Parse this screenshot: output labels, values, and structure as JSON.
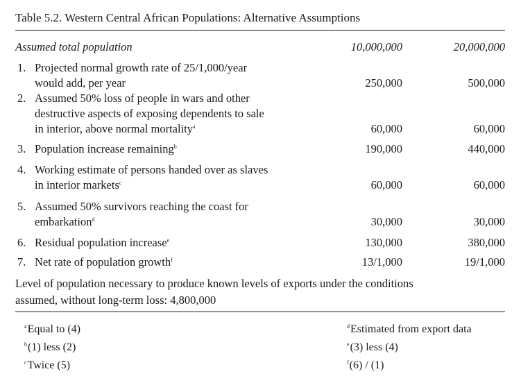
{
  "table": {
    "caption": "Table 5.2. Western Central African Populations: Alternative Assumptions",
    "header": {
      "label": "Assumed total population",
      "col1": "10,000,000",
      "col2": "20,000,000"
    },
    "rows": [
      {
        "num": "1.",
        "lines": [
          "Projected normal growth rate of 25/1,000/year",
          "would add, per year"
        ],
        "sup": "",
        "v1": "250,000",
        "v2": "500,000"
      },
      {
        "num": "2.",
        "lines": [
          "Assumed 50% loss of people in wars and other",
          "destructive aspects of exposing dependents to sale",
          "in interior, above normal mortality"
        ],
        "sup": "a",
        "v1": "60,000",
        "v2": "60,000"
      },
      {
        "num": "3.",
        "lines": [
          "Population increase remaining"
        ],
        "sup": "b",
        "v1": "190,000",
        "v2": "440,000"
      },
      {
        "num": "4.",
        "lines": [
          "Working estimate of persons handed over as slaves",
          "in interior markets"
        ],
        "sup": "c",
        "v1": "60,000",
        "v2": "60,000"
      },
      {
        "num": "5.",
        "lines": [
          "Assumed 50% survivors reaching the coast for",
          "embarkation"
        ],
        "sup": "d",
        "v1": "30,000",
        "v2": "30,000"
      },
      {
        "num": "6.",
        "lines": [
          "Residual population increase"
        ],
        "sup": "e",
        "v1": "130,000",
        "v2": "380,000"
      },
      {
        "num": "7.",
        "lines": [
          "Net rate of population growth"
        ],
        "sup": "f",
        "v1": "13/1,000",
        "v2": "19/1,000"
      }
    ],
    "summary_lines": [
      "Level of population necessary to produce known levels of exports under the conditions",
      "assumed, without long-term loss: 4,800,000"
    ]
  },
  "footnotes": [
    {
      "mark": "a",
      "text": "Equal to (4)"
    },
    {
      "mark": "b",
      "text": "(1) less (2)"
    },
    {
      "mark": "c",
      "text": "Twice (5)"
    },
    {
      "mark": "d",
      "text": "Estimated from export data"
    },
    {
      "mark": "e",
      "text": "(3) less (4)"
    },
    {
      "mark": "f",
      "text": "(6) / (1)"
    }
  ]
}
